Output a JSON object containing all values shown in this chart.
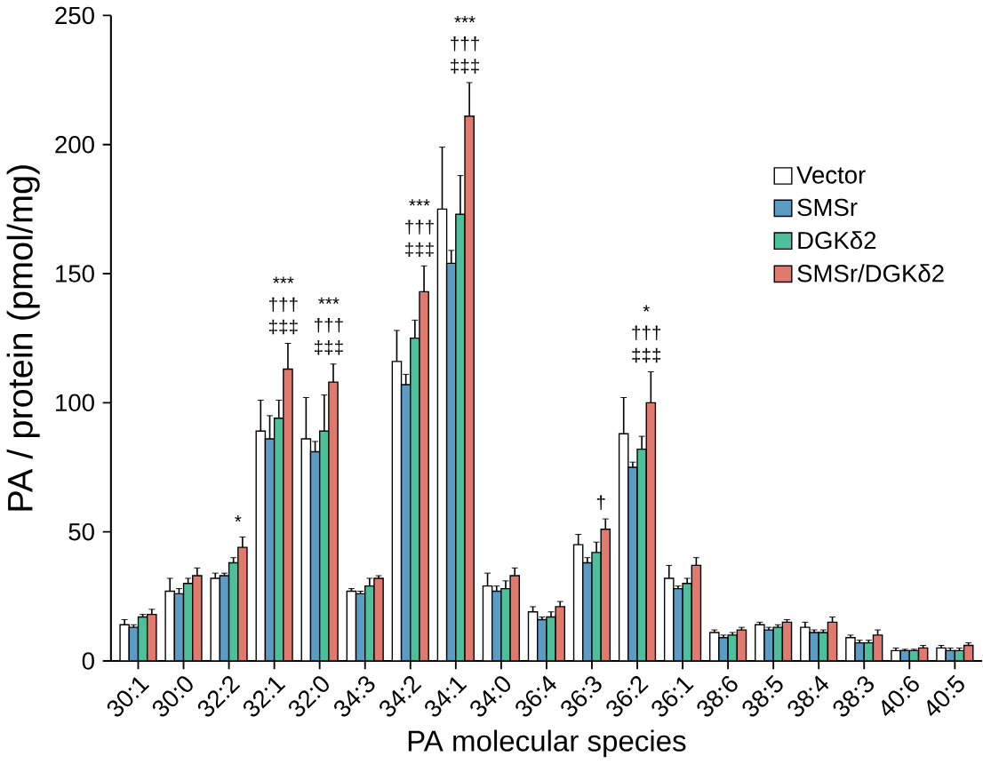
{
  "chart_data": {
    "type": "bar",
    "xlabel": "PA molecular species",
    "ylabel": "PA / protein (pmol/mg)",
    "categories": [
      "30:1",
      "30:0",
      "32:2",
      "32:1",
      "32:0",
      "34:3",
      "34:2",
      "34:1",
      "34:0",
      "36:4",
      "36:3",
      "36:2",
      "36:1",
      "38:6",
      "38:5",
      "38:4",
      "38:3",
      "40:6",
      "40:5"
    ],
    "series": [
      {
        "name": "Vector",
        "color": "#ffffff",
        "values": [
          14,
          27,
          32,
          89,
          86,
          27,
          116,
          175,
          29,
          19,
          45,
          88,
          32,
          11,
          14,
          13,
          9,
          4,
          5
        ],
        "errors": [
          2,
          5,
          2,
          12,
          16,
          1,
          12,
          24,
          5,
          2,
          4,
          14,
          5,
          1,
          1,
          2,
          1,
          1,
          1
        ]
      },
      {
        "name": "SMSr",
        "color": "#5b9bc4",
        "values": [
          13,
          26,
          33,
          86,
          81,
          26,
          107,
          154,
          27,
          16,
          38,
          75,
          28,
          9,
          12,
          11,
          7,
          4,
          4
        ],
        "errors": [
          1,
          2,
          1,
          9,
          4,
          1,
          4,
          5,
          2,
          1,
          2,
          2,
          1,
          1,
          1,
          1,
          1,
          0.5,
          1
        ]
      },
      {
        "name": "DGKδ2",
        "color": "#4dbf9a",
        "values": [
          17,
          30,
          38,
          94,
          89,
          29,
          125,
          173,
          28,
          17,
          42,
          82,
          30,
          10,
          13,
          11,
          7,
          4,
          4
        ],
        "errors": [
          1,
          2,
          2,
          7,
          14,
          3,
          7,
          15,
          3,
          2,
          4,
          5,
          2,
          1,
          1,
          1,
          1,
          0.5,
          1
        ]
      },
      {
        "name": "SMSr/DGKδ2",
        "color": "#e07a6e",
        "values": [
          18,
          33,
          44,
          113,
          108,
          32,
          143,
          211,
          33,
          21,
          51,
          100,
          37,
          12,
          15,
          15,
          10,
          5,
          6
        ],
        "errors": [
          2,
          3,
          4,
          10,
          7,
          1,
          10,
          13,
          3,
          2,
          4,
          12,
          3,
          1,
          1,
          2,
          2,
          1,
          1
        ]
      }
    ],
    "ylim": [
      0,
      250
    ],
    "yticks": [
      0,
      50,
      100,
      150,
      200,
      250
    ],
    "legend": "top right",
    "grid": false,
    "annotations": [
      "*",
      "***",
      "†††",
      "‡‡‡",
      "***",
      "†††",
      "‡‡‡",
      "***",
      "†††",
      "‡‡‡",
      "***",
      "†††",
      "‡‡‡",
      "†",
      "*",
      "†††",
      "‡‡‡"
    ]
  }
}
